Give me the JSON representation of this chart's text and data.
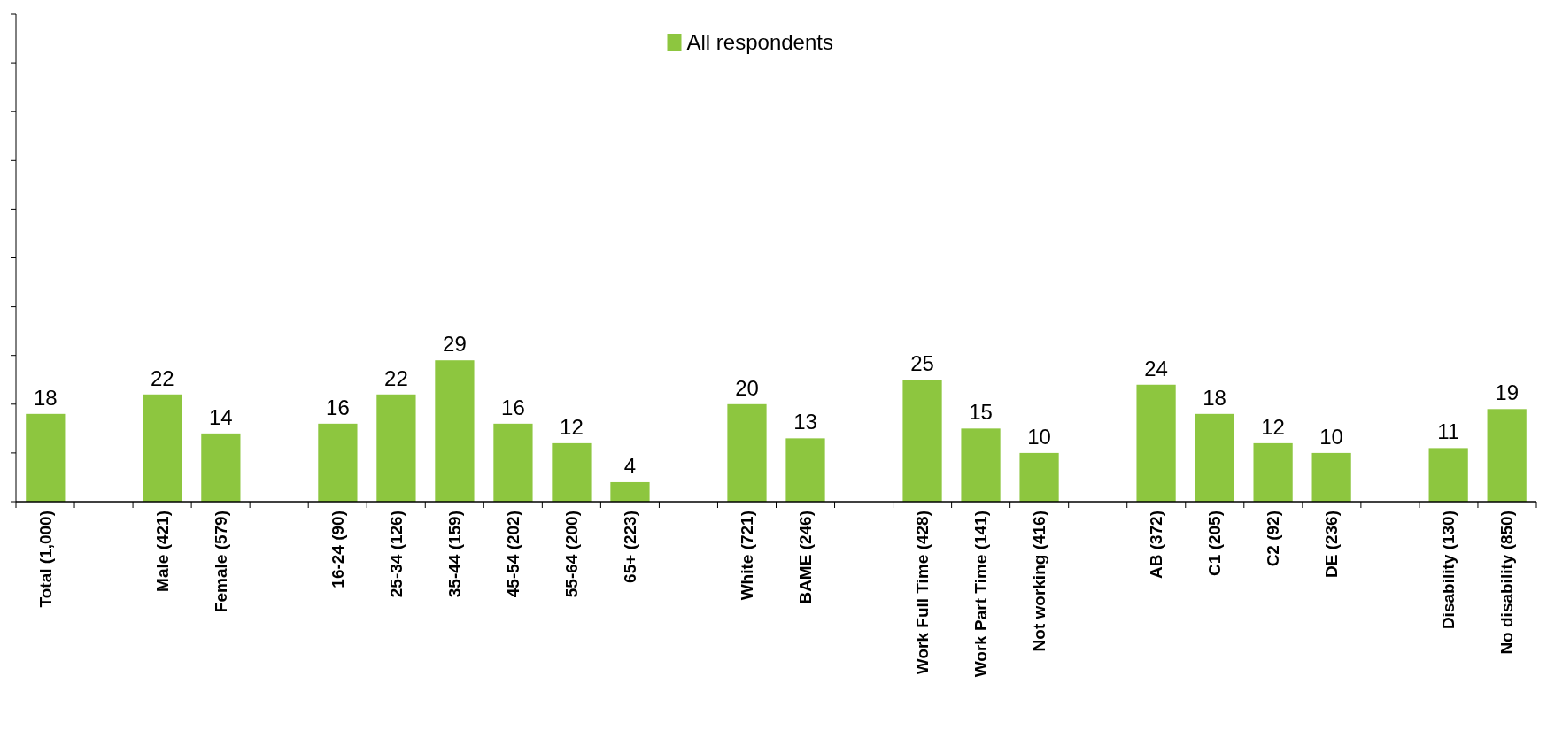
{
  "chart_data": {
    "type": "bar",
    "categories": [
      "Total (1,000)",
      null,
      "Male (421)",
      "Female (579)",
      null,
      "16-24 (90)",
      "25-34 (126)",
      "35-44 (159)",
      "45-54 (202)",
      "55-64 (200)",
      "65+ (223)",
      null,
      "White (721)",
      "BAME (246)",
      null,
      "Work Full Time (428)",
      "Work Part Time (141)",
      "Not working (416)",
      null,
      "AB (372)",
      "C1 (205)",
      "C2 (92)",
      "DE (236)",
      null,
      "Disability (130)",
      "No disability (850)"
    ],
    "series": [
      {
        "name": "All respondents",
        "color": "#8dc63f",
        "values": [
          18,
          null,
          22,
          14,
          null,
          16,
          22,
          29,
          16,
          12,
          4,
          null,
          20,
          13,
          null,
          25,
          15,
          10,
          null,
          24,
          18,
          12,
          10,
          null,
          11,
          19
        ]
      }
    ],
    "ylim": [
      0,
      100
    ],
    "yticks": [
      {
        "value": 0,
        "label": null
      },
      {
        "value": 10,
        "label": null
      },
      {
        "value": 20,
        "label": null
      },
      {
        "value": 30,
        "label": null
      },
      {
        "value": 40,
        "label": null
      },
      {
        "value": 50,
        "label": null
      },
      {
        "value": 60,
        "label": null
      },
      {
        "value": 70,
        "label": null
      },
      {
        "value": 80,
        "label": null
      },
      {
        "value": 90,
        "label": null
      },
      {
        "value": 100,
        "label": null
      }
    ],
    "tick_labels": "x",
    "data_labels": true,
    "legend": "top"
  }
}
